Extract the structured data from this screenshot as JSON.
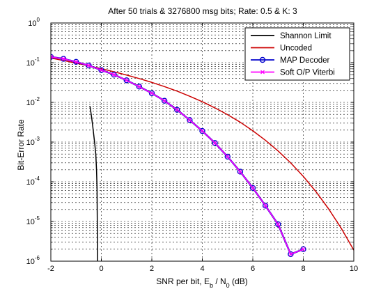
{
  "chart_data": {
    "type": "line",
    "title": "After 50 trials & 3276800 msg bits; Rate: 0.5 & K: 3",
    "xlabel": {
      "prefix": "SNR per bit, E",
      "sub1": "b",
      "mid": " / N",
      "sub2": "0",
      "suffix": " (dB)"
    },
    "ylabel": "Bit-Error Rate",
    "xlim": [
      -2,
      10
    ],
    "ylim": [
      1e-06,
      1
    ],
    "yscale": "log",
    "grid": true,
    "legend_position": "top-right",
    "x_ticks": [
      {
        "value": -2,
        "label": "-2"
      },
      {
        "value": 0,
        "label": "0"
      },
      {
        "value": 2,
        "label": "2"
      },
      {
        "value": 4,
        "label": "4"
      },
      {
        "value": 6,
        "label": "6"
      },
      {
        "value": 8,
        "label": "8"
      },
      {
        "value": 10,
        "label": "10"
      }
    ],
    "y_ticks": [
      {
        "value": 1.0,
        "base": "10",
        "exp": "0"
      },
      {
        "value": 0.1,
        "base": "10",
        "exp": "-1"
      },
      {
        "value": 0.01,
        "base": "10",
        "exp": "-2"
      },
      {
        "value": 0.001,
        "base": "10",
        "exp": "-3"
      },
      {
        "value": 0.0001,
        "base": "10",
        "exp": "-4"
      },
      {
        "value": 1e-05,
        "base": "10",
        "exp": "-5"
      },
      {
        "value": 1e-06,
        "base": "10",
        "exp": "-6"
      }
    ],
    "series": [
      {
        "name": "Shannon Limit",
        "color": "#000000",
        "marker": "none",
        "x": [
          -0.45,
          -0.42,
          -0.38,
          -0.34,
          -0.3,
          -0.26,
          -0.22,
          -0.19,
          -0.17,
          -0.16,
          -0.15,
          -0.15
        ],
        "y": [
          0.008,
          0.006,
          0.004,
          0.0025,
          0.0015,
          0.0009,
          0.0005,
          0.0002,
          7e-05,
          1e-05,
          3e-06,
          1e-06
        ]
      },
      {
        "name": "Uncoded",
        "color": "#cc0000",
        "marker": "none",
        "x": [
          -2,
          -1.5,
          -1,
          -0.5,
          0,
          0.5,
          1,
          1.5,
          2,
          2.5,
          3,
          3.5,
          4,
          4.5,
          5,
          5.5,
          6,
          6.5,
          7,
          7.5,
          8,
          8.5,
          9,
          9.5,
          10
        ],
        "y": [
          0.1306,
          0.1132,
          0.0976,
          0.0834,
          0.0705,
          0.059,
          0.0488,
          0.0398,
          0.0319,
          0.025,
          0.0192,
          0.0143,
          0.0104,
          0.00727,
          0.00491,
          0.00317,
          0.00193,
          0.00111,
          0.000599,
          0.000299,
          0.000137,
          5.66e-05,
          2.09e-05,
          6.8e-06,
          1.9e-06
        ]
      },
      {
        "name": "MAP Decoder",
        "color": "#0000cc",
        "marker": "circle",
        "x": [
          -2,
          -1.5,
          -1,
          -0.5,
          0,
          0.5,
          1,
          1.5,
          2,
          2.5,
          3,
          3.5,
          4,
          4.5,
          5,
          5.5,
          6,
          6.5,
          7,
          7.5,
          8
        ],
        "y": [
          0.14,
          0.125,
          0.105,
          0.085,
          0.065,
          0.05,
          0.036,
          0.025,
          0.017,
          0.011,
          0.0065,
          0.0036,
          0.0019,
          0.00095,
          0.00043,
          0.00018,
          7e-05,
          2.5e-05,
          8.5e-06,
          1.5e-06,
          2e-06
        ]
      },
      {
        "name": "Soft O/P Viterbi",
        "color": "#ff00ff",
        "marker": "x",
        "x": [
          -2,
          -1.5,
          -1,
          -0.5,
          0,
          0.5,
          1,
          1.5,
          2,
          2.5,
          3,
          3.5,
          4,
          4.5,
          5,
          5.5,
          6,
          6.5,
          7,
          7.5,
          8
        ],
        "y": [
          0.14,
          0.125,
          0.105,
          0.085,
          0.065,
          0.05,
          0.036,
          0.025,
          0.017,
          0.011,
          0.0065,
          0.0036,
          0.0019,
          0.00095,
          0.00043,
          0.00018,
          7e-05,
          2.5e-05,
          8.5e-06,
          1.5e-06,
          2e-06
        ]
      }
    ]
  }
}
